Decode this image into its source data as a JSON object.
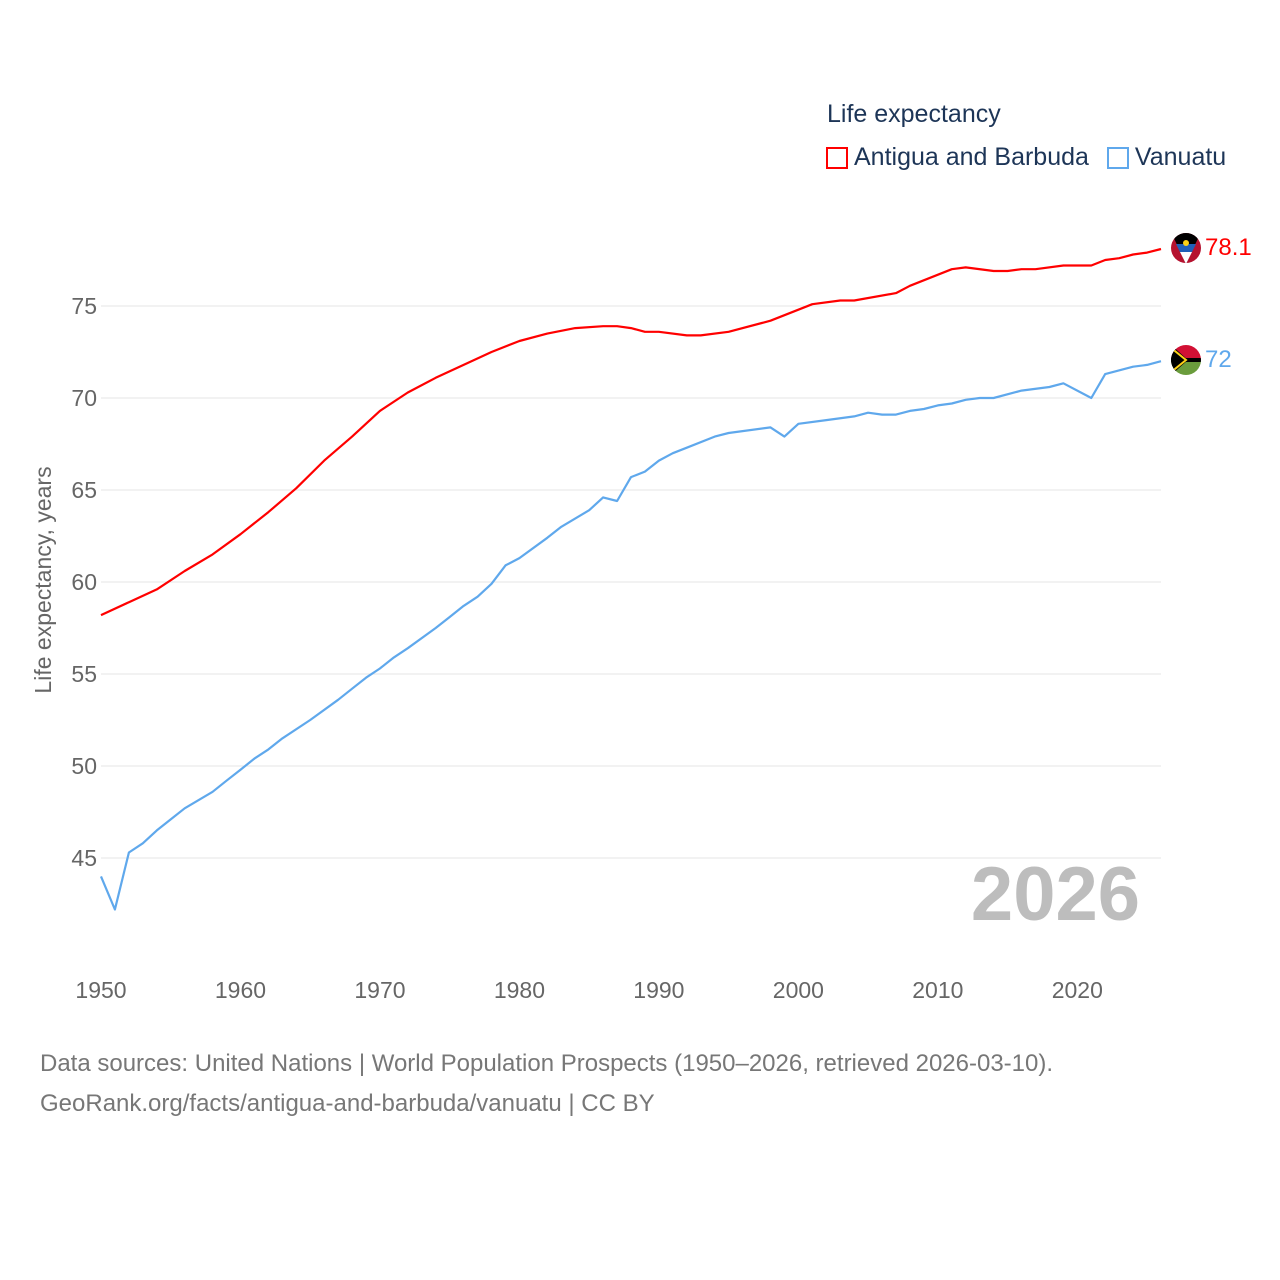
{
  "chart_data": {
    "type": "line",
    "title": "Life expectancy",
    "xlabel": "",
    "ylabel": "Life expectancy, years",
    "xlim": [
      1950,
      2026
    ],
    "ylim": [
      41,
      79
    ],
    "yticks": [
      45,
      50,
      55,
      60,
      65,
      70,
      75
    ],
    "xticks": [
      1950,
      1960,
      1970,
      1980,
      1990,
      2000,
      2010,
      2020
    ],
    "grid": true,
    "legend_position": "top-right",
    "current_year": "2026",
    "series": [
      {
        "name": "Antigua and Barbuda",
        "color": "#ff0000",
        "end_label": "78.1",
        "x": [
          1950,
          1952,
          1954,
          1956,
          1958,
          1960,
          1962,
          1964,
          1966,
          1968,
          1970,
          1972,
          1974,
          1976,
          1978,
          1980,
          1982,
          1984,
          1986,
          1987,
          1988,
          1989,
          1990,
          1992,
          1993,
          1995,
          1998,
          2001,
          2003,
          2004,
          2007,
          2008,
          2011,
          2012,
          2014,
          2015,
          2016,
          2017,
          2019,
          2021,
          2022,
          2023,
          2024,
          2025,
          2026
        ],
        "y": [
          58.2,
          58.9,
          59.6,
          60.6,
          61.5,
          62.6,
          63.8,
          65.1,
          66.6,
          67.9,
          69.3,
          70.3,
          71.1,
          71.8,
          72.5,
          73.1,
          73.5,
          73.8,
          73.9,
          73.9,
          73.8,
          73.6,
          73.6,
          73.4,
          73.4,
          73.6,
          74.2,
          75.1,
          75.3,
          75.3,
          75.7,
          76.1,
          77.0,
          77.1,
          76.9,
          76.9,
          77.0,
          77.0,
          77.2,
          77.2,
          77.5,
          77.6,
          77.8,
          77.9,
          78.1
        ]
      },
      {
        "name": "Vanuatu",
        "color": "#5fa8ec",
        "end_label": "72",
        "x": [
          1950,
          1951,
          1952,
          1953,
          1954,
          1955,
          1956,
          1958,
          1959,
          1960,
          1961,
          1962,
          1963,
          1965,
          1967,
          1968,
          1969,
          1970,
          1971,
          1972,
          1974,
          1975,
          1976,
          1977,
          1978,
          1979,
          1980,
          1982,
          1983,
          1985,
          1986,
          1987,
          1988,
          1989,
          1990,
          1991,
          1992,
          1994,
          1995,
          1998,
          1999,
          2000,
          2002,
          2004,
          2005,
          2006,
          2007,
          2008,
          2009,
          2010,
          2011,
          2012,
          2013,
          2014,
          2016,
          2018,
          2019,
          2021,
          2022,
          2024,
          2025,
          2026
        ],
        "y": [
          44.0,
          42.2,
          45.3,
          45.8,
          46.5,
          47.1,
          47.7,
          48.6,
          49.2,
          49.8,
          50.4,
          50.9,
          51.5,
          52.5,
          53.6,
          54.2,
          54.8,
          55.3,
          55.9,
          56.4,
          57.5,
          58.1,
          58.7,
          59.2,
          59.9,
          60.9,
          61.3,
          62.4,
          63.0,
          63.9,
          64.6,
          64.4,
          65.7,
          66.0,
          66.6,
          67.0,
          67.3,
          67.9,
          68.1,
          68.4,
          67.9,
          68.6,
          68.8,
          69.0,
          69.2,
          69.1,
          69.1,
          69.3,
          69.4,
          69.6,
          69.7,
          69.9,
          70.0,
          70.0,
          70.4,
          70.6,
          70.8,
          70.0,
          71.3,
          71.7,
          71.8,
          72.0
        ]
      }
    ]
  },
  "footer": {
    "line1": "Data sources: United Nations | World Population Prospects (1950–2026, retrieved 2026-03-10).",
    "line2": "GeoRank.org/facts/antigua-and-barbuda/vanuatu | CC BY"
  }
}
